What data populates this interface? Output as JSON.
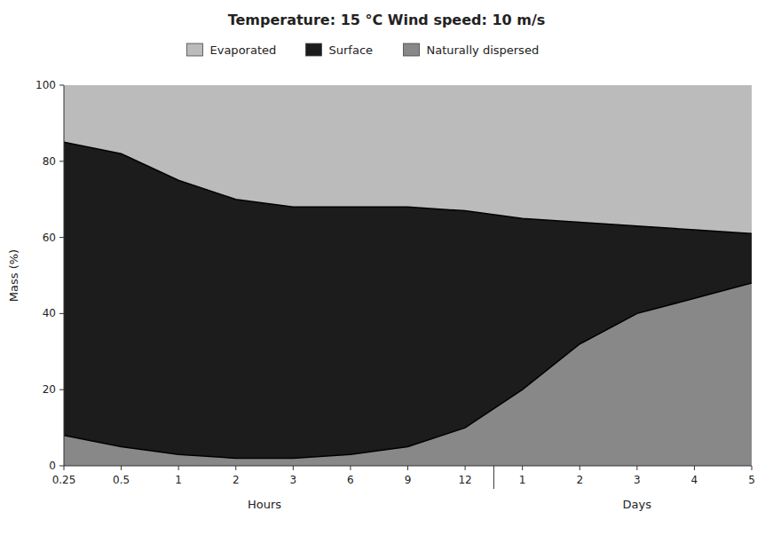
{
  "chart_data": {
    "type": "area",
    "stacked": true,
    "title": "Temperature: 15 °C    Wind speed: 10 m/s",
    "ylabel": "Mass (%)",
    "categories": [
      "0.25",
      "0.5",
      "1",
      "2",
      "3",
      "6",
      "9",
      "12",
      "1",
      "2",
      "3",
      "4",
      "5"
    ],
    "x_groups": [
      {
        "label": "Hours",
        "first": 0,
        "last": 7
      },
      {
        "label": "Days",
        "first": 8,
        "last": 12
      }
    ],
    "series": [
      {
        "name": "Evaporated",
        "color": "#bbbbbb",
        "values": [
          15,
          18,
          25,
          30,
          32,
          32,
          32,
          33,
          35,
          36,
          37,
          38,
          39
        ]
      },
      {
        "name": "Surface",
        "color": "#1c1c1c",
        "values": [
          77,
          77,
          72,
          68,
          66,
          65,
          63,
          57,
          45,
          32,
          23,
          18,
          13
        ]
      },
      {
        "name": "Naturally dispersed",
        "color": "#888888",
        "values": [
          8,
          5,
          3,
          2,
          2,
          3,
          5,
          10,
          20,
          32,
          40,
          44,
          48
        ]
      }
    ],
    "ylim": [
      0,
      100
    ],
    "yticks": [
      0,
      20,
      40,
      60,
      80,
      100
    ],
    "grid": false,
    "legend": "top"
  }
}
